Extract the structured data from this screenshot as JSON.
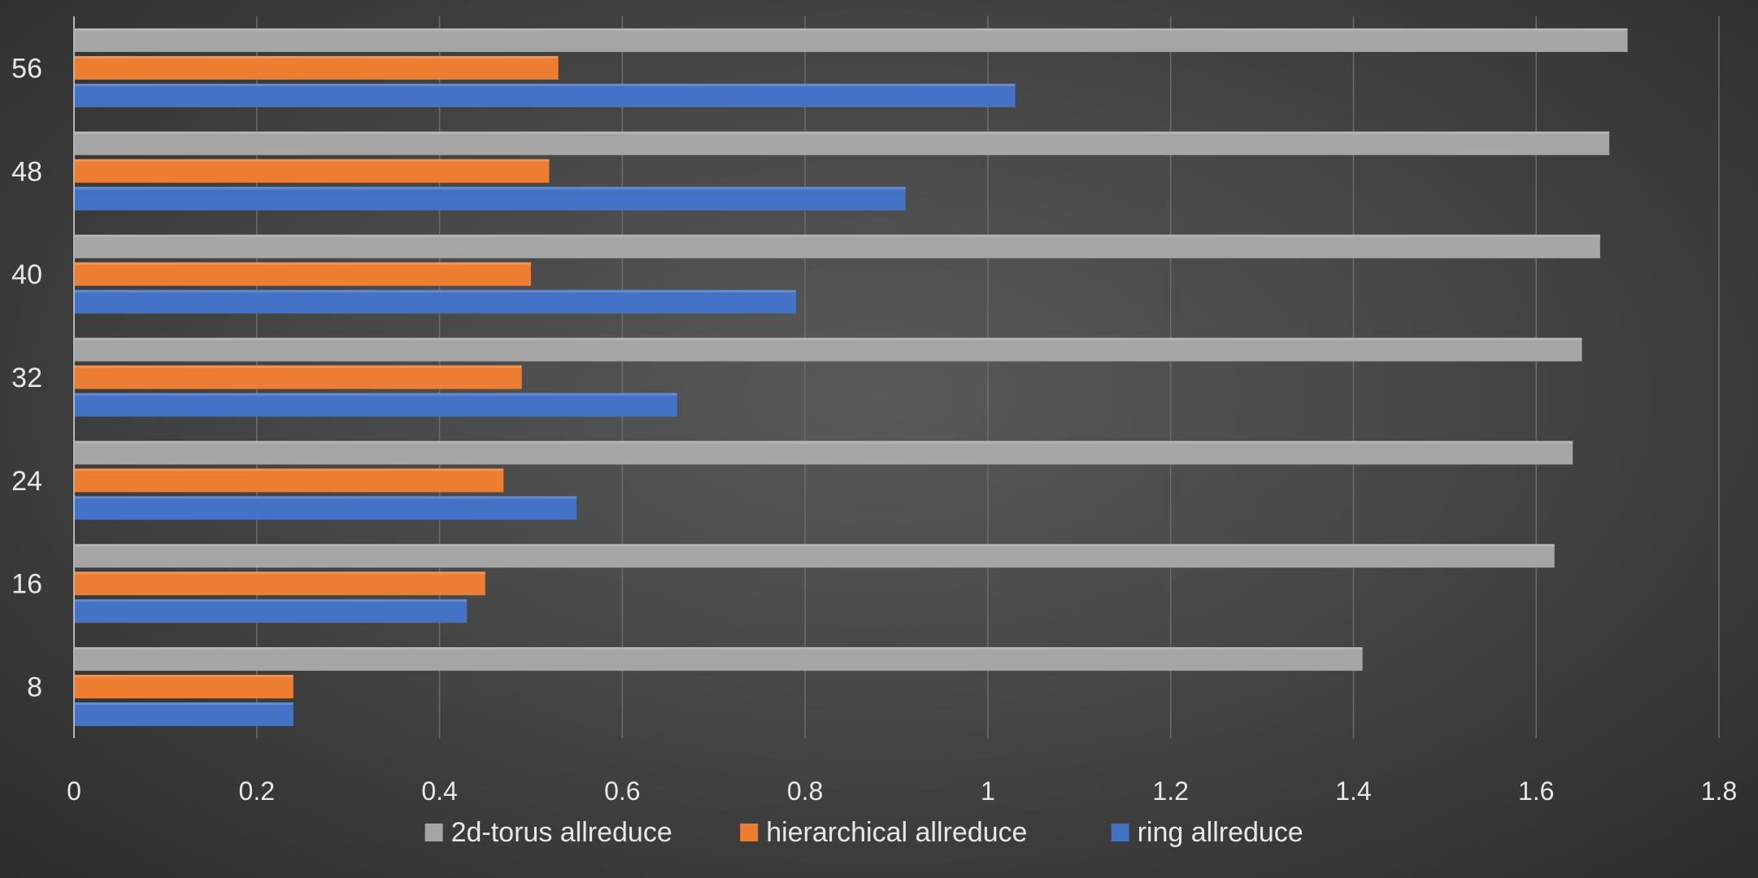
{
  "chart_data": {
    "type": "bar",
    "orientation": "horizontal",
    "title": "",
    "xlabel": "",
    "ylabel": "",
    "categories": [
      "8",
      "16",
      "24",
      "32",
      "40",
      "48",
      "56"
    ],
    "series": [
      {
        "name": "ring allreduce",
        "color": "#4472c4",
        "values": [
          0.24,
          0.43,
          0.55,
          0.66,
          0.79,
          0.91,
          1.03
        ]
      },
      {
        "name": "hierarchical allreduce",
        "color": "#ed7d31",
        "values": [
          0.24,
          0.45,
          0.47,
          0.49,
          0.5,
          0.52,
          0.53
        ]
      },
      {
        "name": "2d-torus allreduce",
        "color": "#a5a5a5",
        "values": [
          1.41,
          1.62,
          1.64,
          1.65,
          1.67,
          1.68,
          1.7
        ]
      }
    ],
    "xlim": [
      0,
      1.8
    ],
    "xticks": [
      "0",
      "0.2",
      "0.4",
      "0.6",
      "0.8",
      "1",
      "1.2",
      "1.4",
      "1.6",
      "1.8"
    ],
    "grid": "vertical",
    "legend": {
      "placement": "bottom",
      "entries": [
        "2d-torus allreduce",
        "hierarchical allreduce",
        "ring allreduce"
      ]
    }
  }
}
